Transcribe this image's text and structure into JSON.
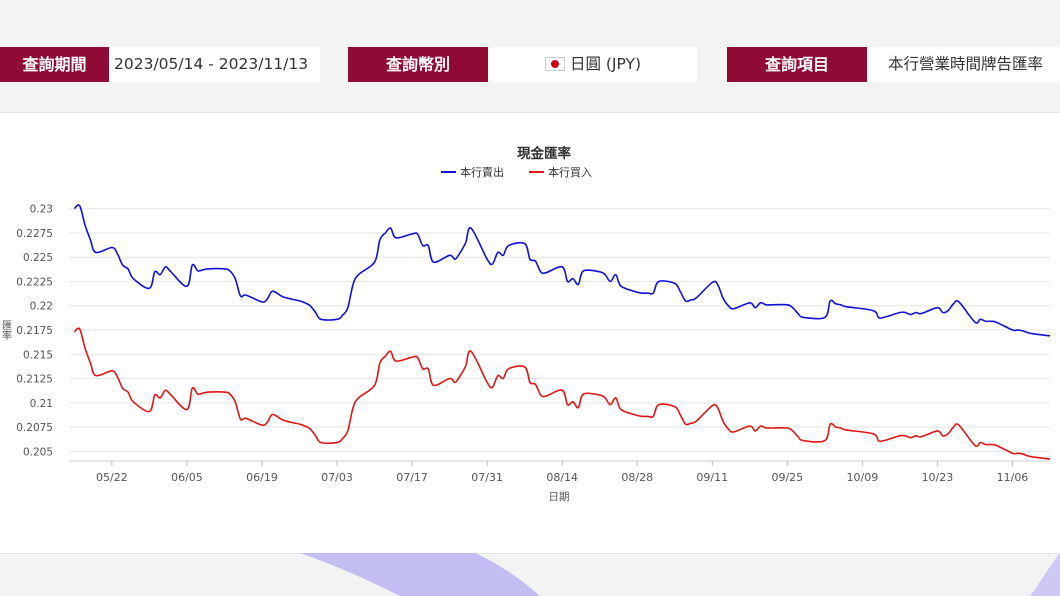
{
  "query": {
    "period_label": "查詢期間",
    "period_value": "2023/05/14 - 2023/11/13",
    "currency_label": "查詢幣別",
    "currency_value": "日圓 (JPY)",
    "currency_flag_icon": "japan-flag-icon",
    "item_label": "查詢項目",
    "item_value": "本行營業時間牌告匯率"
  },
  "colors": {
    "brand": "#8f0a35",
    "sell": "#1010d8",
    "buy": "#e01515"
  },
  "chart_data": {
    "type": "line",
    "title": "現金匯率",
    "xlabel": "日期",
    "ylabel": "匯率",
    "legend_position": "top-center",
    "grid": true,
    "xlim": [
      "2023-05-14",
      "2023-11-13"
    ],
    "ylim": [
      0.204,
      0.231
    ],
    "x_ticks": [
      "05/22",
      "06/05",
      "06/19",
      "07/03",
      "07/17",
      "07/31",
      "08/14",
      "08/28",
      "09/11",
      "09/25",
      "10/09",
      "10/23",
      "11/06"
    ],
    "x_tick_dates": [
      "2023-05-22",
      "2023-06-05",
      "2023-06-19",
      "2023-07-03",
      "2023-07-17",
      "2023-07-31",
      "2023-08-14",
      "2023-08-28",
      "2023-09-11",
      "2023-09-25",
      "2023-10-09",
      "2023-10-23",
      "2023-11-06"
    ],
    "y_ticks": [
      "0.205",
      "0.2075",
      "0.21",
      "0.2125",
      "0.215",
      "0.2175",
      "0.22",
      "0.2225",
      "0.225",
      "0.2275",
      "0.23"
    ],
    "y_tick_values": [
      0.205,
      0.2075,
      0.21,
      0.2125,
      0.215,
      0.2175,
      0.22,
      0.2225,
      0.225,
      0.2275,
      0.23
    ],
    "x": [
      "2023-05-15",
      "2023-05-16",
      "2023-05-17",
      "2023-05-18",
      "2023-05-19",
      "2023-05-22",
      "2023-05-23",
      "2023-05-24",
      "2023-05-25",
      "2023-05-26",
      "2023-05-29",
      "2023-05-30",
      "2023-05-31",
      "2023-06-01",
      "2023-06-02",
      "2023-06-05",
      "2023-06-06",
      "2023-06-07",
      "2023-06-08",
      "2023-06-09",
      "2023-06-12",
      "2023-06-13",
      "2023-06-14",
      "2023-06-15",
      "2023-06-16",
      "2023-06-19",
      "2023-06-20",
      "2023-06-21",
      "2023-06-23",
      "2023-06-26",
      "2023-06-27",
      "2023-06-28",
      "2023-06-29",
      "2023-06-30",
      "2023-07-03",
      "2023-07-04",
      "2023-07-05",
      "2023-07-06",
      "2023-07-07",
      "2023-07-10",
      "2023-07-11",
      "2023-07-12",
      "2023-07-13",
      "2023-07-14",
      "2023-07-17",
      "2023-07-18",
      "2023-07-19",
      "2023-07-20",
      "2023-07-21",
      "2023-07-24",
      "2023-07-25",
      "2023-07-26",
      "2023-07-27",
      "2023-07-28",
      "2023-07-31",
      "2023-08-01",
      "2023-08-02",
      "2023-08-03",
      "2023-08-04",
      "2023-08-07",
      "2023-08-08",
      "2023-08-09",
      "2023-08-10",
      "2023-08-11",
      "2023-08-14",
      "2023-08-15",
      "2023-08-16",
      "2023-08-17",
      "2023-08-18",
      "2023-08-21",
      "2023-08-22",
      "2023-08-23",
      "2023-08-24",
      "2023-08-25",
      "2023-08-28",
      "2023-08-29",
      "2023-08-30",
      "2023-08-31",
      "2023-09-01",
      "2023-09-04",
      "2023-09-05",
      "2023-09-06",
      "2023-09-07",
      "2023-09-08",
      "2023-09-11",
      "2023-09-12",
      "2023-09-13",
      "2023-09-14",
      "2023-09-15",
      "2023-09-18",
      "2023-09-19",
      "2023-09-20",
      "2023-09-21",
      "2023-09-22",
      "2023-09-25",
      "2023-09-26",
      "2023-09-27",
      "2023-09-28",
      "2023-10-02",
      "2023-10-03",
      "2023-10-04",
      "2023-10-05",
      "2023-10-06",
      "2023-10-11",
      "2023-10-12",
      "2023-10-13",
      "2023-10-16",
      "2023-10-17",
      "2023-10-18",
      "2023-10-19",
      "2023-10-20",
      "2023-10-23",
      "2023-10-24",
      "2023-10-25",
      "2023-10-26",
      "2023-10-27",
      "2023-10-30",
      "2023-10-31",
      "2023-11-01",
      "2023-11-02",
      "2023-11-03",
      "2023-11-06",
      "2023-11-07",
      "2023-11-08",
      "2023-11-09",
      "2023-11-10",
      "2023-11-13"
    ],
    "series": [
      {
        "name": "本行賣出",
        "color": "#1010d8",
        "values": [
          0.23,
          0.2303,
          0.2283,
          0.2268,
          0.2255,
          0.226,
          0.2254,
          0.2242,
          0.2238,
          0.2228,
          0.2218,
          0.2235,
          0.2232,
          0.224,
          0.2235,
          0.222,
          0.2242,
          0.2236,
          0.2237,
          0.2238,
          0.2238,
          0.2236,
          0.2228,
          0.221,
          0.2211,
          0.2204,
          0.2207,
          0.2215,
          0.2209,
          0.2205,
          0.2203,
          0.22,
          0.2193,
          0.2186,
          0.2186,
          0.219,
          0.2198,
          0.2222,
          0.2232,
          0.2245,
          0.2268,
          0.2275,
          0.228,
          0.227,
          0.2274,
          0.2274,
          0.2262,
          0.2262,
          0.2245,
          0.2252,
          0.2248,
          0.2255,
          0.2265,
          0.228,
          0.2248,
          0.2243,
          0.2255,
          0.2252,
          0.2262,
          0.2264,
          0.2248,
          0.2246,
          0.2235,
          0.2234,
          0.224,
          0.2225,
          0.2228,
          0.2222,
          0.2236,
          0.2235,
          0.2232,
          0.2225,
          0.2232,
          0.222,
          0.2214,
          0.2213,
          0.2213,
          0.2213,
          0.2225,
          0.2223,
          0.2215,
          0.2205,
          0.2206,
          0.2208,
          0.2224,
          0.2222,
          0.2208,
          0.22,
          0.2197,
          0.2203,
          0.2198,
          0.2203,
          0.2201,
          0.2201,
          0.2201,
          0.2198,
          0.2192,
          0.2188,
          0.2188,
          0.2205,
          0.2202,
          0.2201,
          0.2199,
          0.2195,
          0.2188,
          0.2188,
          0.2193,
          0.2193,
          0.2191,
          0.2193,
          0.2192,
          0.2198,
          0.2193,
          0.2195,
          0.2202,
          0.2204,
          0.2183,
          0.2186,
          0.2184,
          0.2184,
          0.2183,
          0.2175,
          0.2175,
          0.2174,
          0.2172,
          0.2171,
          0.2169
        ]
      },
      {
        "name": "本行買入",
        "color": "#e01515",
        "values": [
          0.2173,
          0.2176,
          0.2156,
          0.2141,
          0.2128,
          0.2133,
          0.2127,
          0.2115,
          0.2111,
          0.2101,
          0.2091,
          0.2108,
          0.2105,
          0.2113,
          0.2108,
          0.2093,
          0.2115,
          0.2109,
          0.211,
          0.2111,
          0.2111,
          0.2109,
          0.2101,
          0.2083,
          0.2084,
          0.2077,
          0.208,
          0.2088,
          0.2082,
          0.2078,
          0.2076,
          0.2073,
          0.2066,
          0.2059,
          0.2059,
          0.2063,
          0.2071,
          0.2095,
          0.2105,
          0.2118,
          0.2141,
          0.2148,
          0.2153,
          0.2143,
          0.2147,
          0.2147,
          0.2135,
          0.2135,
          0.2118,
          0.2125,
          0.2121,
          0.2128,
          0.2138,
          0.2153,
          0.2121,
          0.2116,
          0.2128,
          0.2125,
          0.2135,
          0.2137,
          0.2121,
          0.2119,
          0.2108,
          0.2107,
          0.2113,
          0.2098,
          0.2101,
          0.2095,
          0.2109,
          0.2108,
          0.2105,
          0.2098,
          0.2105,
          0.2093,
          0.2087,
          0.2086,
          0.2086,
          0.2086,
          0.2098,
          0.2096,
          0.2088,
          0.2078,
          0.2079,
          0.2081,
          0.2097,
          0.2095,
          0.2081,
          0.2073,
          0.207,
          0.2076,
          0.2071,
          0.2076,
          0.2074,
          0.2074,
          0.2074,
          0.2071,
          0.2065,
          0.2061,
          0.2061,
          0.2078,
          0.2075,
          0.2074,
          0.2072,
          0.2068,
          0.2061,
          0.2061,
          0.2066,
          0.2066,
          0.2064,
          0.2066,
          0.2065,
          0.2071,
          0.2066,
          0.2068,
          0.2075,
          0.2077,
          0.2056,
          0.2059,
          0.2057,
          0.2057,
          0.2056,
          0.2048,
          0.2048,
          0.2047,
          0.2045,
          0.2044,
          0.2042
        ]
      }
    ]
  }
}
